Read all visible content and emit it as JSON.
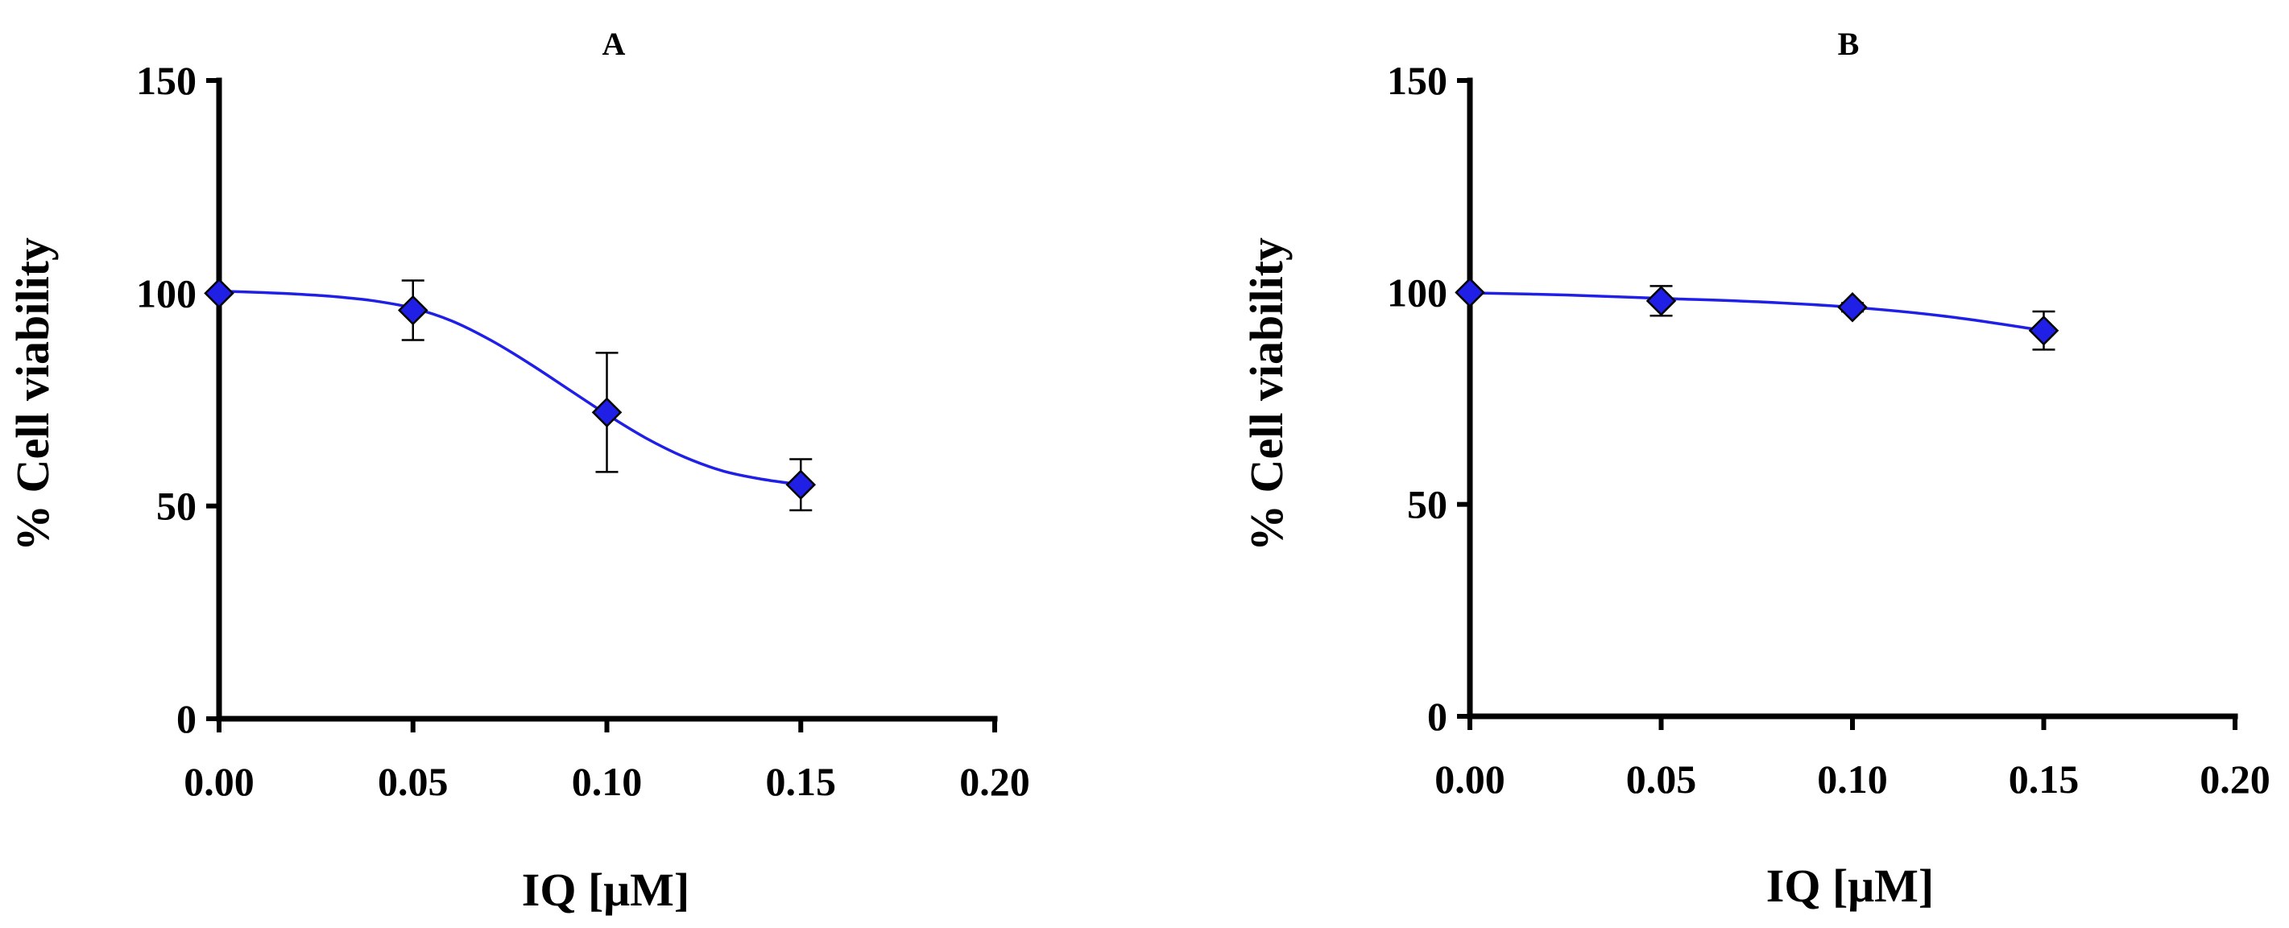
{
  "chart_data": [
    {
      "panel": "A",
      "type": "scatter",
      "title": "A",
      "xlabel": "IQ [μM]",
      "ylabel": "% Cell viability",
      "xlim": [
        0,
        0.2
      ],
      "ylim": [
        0,
        150
      ],
      "xticks": [
        "0.00",
        "0.05",
        "0.10",
        "0.15",
        "0.20"
      ],
      "yticks": [
        "0",
        "50",
        "100",
        "150"
      ],
      "marker": "diamond",
      "color": "#1f1fe6",
      "fit_curve": true,
      "points": [
        {
          "x": 0.0,
          "y": 100,
          "err": 0
        },
        {
          "x": 0.05,
          "y": 96,
          "err": 7
        },
        {
          "x": 0.1,
          "y": 72,
          "err": 14
        },
        {
          "x": 0.15,
          "y": 55,
          "err": 6
        }
      ],
      "curve": [
        {
          "x": 0.0,
          "y": 100.5
        },
        {
          "x": 0.01,
          "y": 100.2
        },
        {
          "x": 0.02,
          "y": 99.8
        },
        {
          "x": 0.03,
          "y": 99.2
        },
        {
          "x": 0.04,
          "y": 98.2
        },
        {
          "x": 0.05,
          "y": 96.5
        },
        {
          "x": 0.06,
          "y": 93.5
        },
        {
          "x": 0.07,
          "y": 89.0
        },
        {
          "x": 0.08,
          "y": 83.5
        },
        {
          "x": 0.09,
          "y": 77.5
        },
        {
          "x": 0.1,
          "y": 71.5
        },
        {
          "x": 0.11,
          "y": 66.0
        },
        {
          "x": 0.12,
          "y": 61.5
        },
        {
          "x": 0.13,
          "y": 58.2
        },
        {
          "x": 0.14,
          "y": 56.3
        },
        {
          "x": 0.15,
          "y": 55.0
        }
      ]
    },
    {
      "panel": "B",
      "type": "scatter",
      "title": "B",
      "xlabel": "IQ [μM]",
      "ylabel": "% Cell viability",
      "xlim": [
        0,
        0.2
      ],
      "ylim": [
        0,
        150
      ],
      "xticks": [
        "0.00",
        "0.05",
        "0.10",
        "0.15",
        "0.20"
      ],
      "yticks": [
        "0",
        "50",
        "100",
        "150"
      ],
      "marker": "diamond",
      "color": "#1f1fe6",
      "fit_curve": true,
      "points": [
        {
          "x": 0.0,
          "y": 100,
          "err": 0
        },
        {
          "x": 0.05,
          "y": 98,
          "err": 3.5
        },
        {
          "x": 0.1,
          "y": 96.5,
          "err": 1
        },
        {
          "x": 0.15,
          "y": 91,
          "err": 4.5
        }
      ],
      "curve": [
        {
          "x": 0.0,
          "y": 99.9
        },
        {
          "x": 0.025,
          "y": 99.4
        },
        {
          "x": 0.05,
          "y": 98.6
        },
        {
          "x": 0.075,
          "y": 97.8
        },
        {
          "x": 0.1,
          "y": 96.5
        },
        {
          "x": 0.125,
          "y": 94.3
        },
        {
          "x": 0.15,
          "y": 91.0
        }
      ]
    }
  ]
}
